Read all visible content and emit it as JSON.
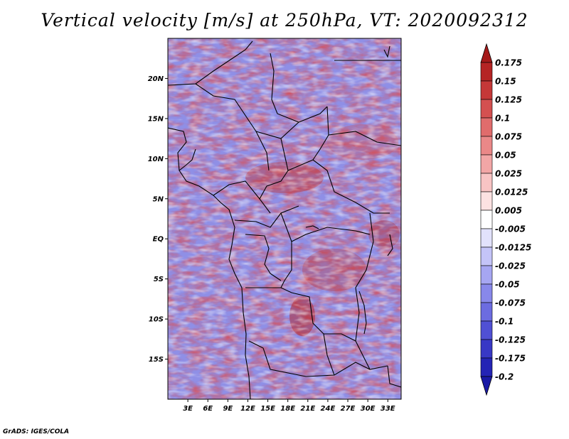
{
  "title": "Vertical velocity [m/s] at 250hPa, VT: 2020092312",
  "credit": "GrADS: IGES/COLA",
  "map": {
    "lon_range": [
      0,
      35
    ],
    "lat_range": [
      -20,
      25
    ],
    "lat_ticks": [
      {
        "value": 20,
        "label": "20N"
      },
      {
        "value": 15,
        "label": "15N"
      },
      {
        "value": 10,
        "label": "10N"
      },
      {
        "value": 5,
        "label": "5N"
      },
      {
        "value": 0,
        "label": "EQ"
      },
      {
        "value": -5,
        "label": "5S"
      },
      {
        "value": -10,
        "label": "10S"
      },
      {
        "value": -15,
        "label": "15S"
      }
    ],
    "lon_ticks": [
      {
        "value": 3,
        "label": "3E"
      },
      {
        "value": 6,
        "label": "6E"
      },
      {
        "value": 9,
        "label": "9E"
      },
      {
        "value": 12,
        "label": "12E"
      },
      {
        "value": 15,
        "label": "15E"
      },
      {
        "value": 18,
        "label": "18E"
      },
      {
        "value": 21,
        "label": "21E"
      },
      {
        "value": 24,
        "label": "24E"
      },
      {
        "value": 27,
        "label": "27E"
      },
      {
        "value": 30,
        "label": "30E"
      },
      {
        "value": 33,
        "label": "33E"
      }
    ]
  },
  "colorbar": {
    "levels": [
      {
        "label": "0.175",
        "color": "#a51a1a"
      },
      {
        "label": "0.15",
        "color": "#b52424"
      },
      {
        "label": "0.125",
        "color": "#c53838"
      },
      {
        "label": "0.1",
        "color": "#d45050"
      },
      {
        "label": "0.075",
        "color": "#e06c6c"
      },
      {
        "label": "0.05",
        "color": "#ea8888"
      },
      {
        "label": "0.025",
        "color": "#f2a6a6"
      },
      {
        "label": "0.0125",
        "color": "#f8c4c4"
      },
      {
        "label": "0.005",
        "color": "#fce2e2"
      },
      {
        "label": "-0.005",
        "color": "#ffffff"
      },
      {
        "label": "-0.0125",
        "color": "#e2e2fc"
      },
      {
        "label": "-0.025",
        "color": "#c4c4f8"
      },
      {
        "label": "-0.05",
        "color": "#a6a6f2"
      },
      {
        "label": "-0.075",
        "color": "#8888ea"
      },
      {
        "label": "-0.1",
        "color": "#6c6ce0"
      },
      {
        "label": "-0.125",
        "color": "#5050d4"
      },
      {
        "label": "-0.175",
        "color": "#3838c5"
      },
      {
        "label": "-0.2",
        "color": "#2424b5"
      }
    ],
    "top_arrow_color": "#a51a1a",
    "bottom_arrow_color": "#1a1aa5"
  }
}
